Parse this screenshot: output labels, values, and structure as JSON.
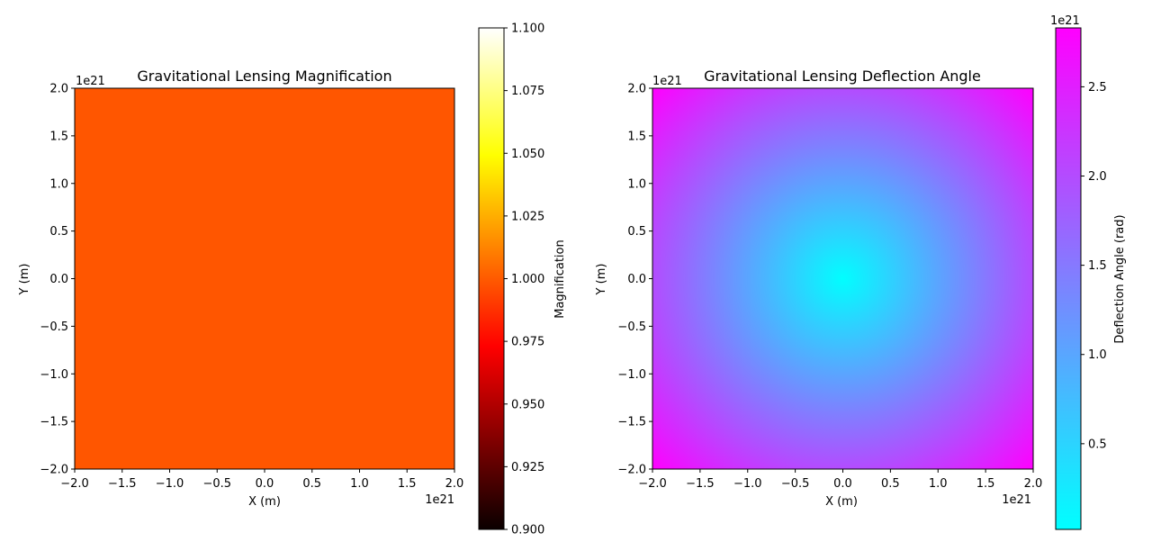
{
  "chart_data": [
    {
      "type": "heatmap",
      "title": "Gravitational Lensing Magnification",
      "xlabel": "X (m)",
      "ylabel": "Y (m)",
      "x_offset_text": "1e21",
      "y_offset_text": "1e21",
      "xlim": [
        -2.0,
        2.0
      ],
      "ylim": [
        -2.0,
        2.0
      ],
      "xticks": [
        -2.0,
        -1.5,
        -1.0,
        -0.5,
        0.0,
        0.5,
        1.0,
        1.5,
        2.0
      ],
      "yticks": [
        -2.0,
        -1.5,
        -1.0,
        -0.5,
        0.0,
        0.5,
        1.0,
        1.5,
        2.0
      ],
      "xtick_labels": [
        "−2.0",
        "−1.5",
        "−1.0",
        "−0.5",
        "0.0",
        "0.5",
        "1.0",
        "1.5",
        "2.0"
      ],
      "ytick_labels": [
        "−2.0",
        "−1.5",
        "−1.0",
        "−0.5",
        "0.0",
        "0.5",
        "1.0",
        "1.5",
        "2.0"
      ],
      "field": "constant",
      "value": 1.0,
      "fill_color": "#ff5600",
      "colormap": "hot",
      "colorbar": {
        "label": "Magnification",
        "range": [
          0.9,
          1.1
        ],
        "ticks": [
          0.9,
          0.925,
          0.95,
          0.975,
          1.0,
          1.025,
          1.05,
          1.075,
          1.1
        ],
        "tick_labels": [
          "0.900",
          "0.925",
          "0.950",
          "0.975",
          "1.000",
          "1.025",
          "1.050",
          "1.075",
          "1.100"
        ],
        "offset_text": ""
      }
    },
    {
      "type": "heatmap",
      "title": "Gravitational Lensing Deflection Angle",
      "xlabel": "X (m)",
      "ylabel": "Y (m)",
      "x_offset_text": "1e21",
      "y_offset_text": "1e21",
      "xlim": [
        -2.0,
        2.0
      ],
      "ylim": [
        -2.0,
        2.0
      ],
      "xticks": [
        -2.0,
        -1.5,
        -1.0,
        -0.5,
        0.0,
        0.5,
        1.0,
        1.5,
        2.0
      ],
      "yticks": [
        -2.0,
        -1.5,
        -1.0,
        -0.5,
        0.0,
        0.5,
        1.0,
        1.5,
        2.0
      ],
      "xtick_labels": [
        "−2.0",
        "−1.5",
        "−1.0",
        "−0.5",
        "0.0",
        "0.5",
        "1.0",
        "1.5",
        "2.0"
      ],
      "ytick_labels": [
        "−2.0",
        "−1.5",
        "−1.0",
        "−0.5",
        "0.0",
        "0.5",
        "1.0",
        "1.5",
        "2.0"
      ],
      "field": "radial",
      "value_at_center": 0.02,
      "value_at_corner": 2.83,
      "colormap": "cool",
      "colormap_start": "#00ffff",
      "colormap_end": "#ff00ff",
      "colorbar": {
        "label": "Deflection Angle (rad)",
        "range": [
          0.02,
          2.83
        ],
        "ticks": [
          0.5,
          1.0,
          1.5,
          2.0,
          2.5
        ],
        "tick_labels": [
          "0.5",
          "1.0",
          "1.5",
          "2.0",
          "2.5"
        ],
        "offset_text": "1e21"
      }
    }
  ]
}
